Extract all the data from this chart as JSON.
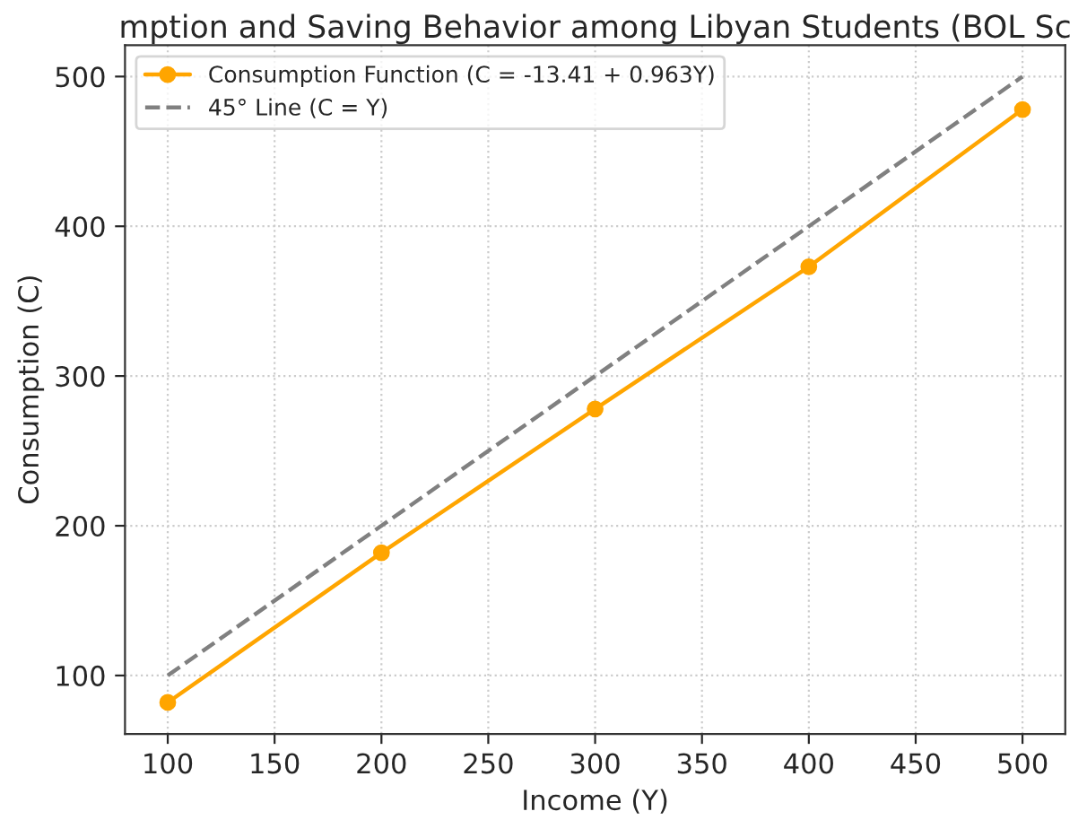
{
  "chart_data": {
    "type": "line",
    "title": "mption and Saving Behavior among Libyan Students (BOL Sc",
    "xlabel": "Income (Y)",
    "ylabel": "Consumption (C)",
    "x": [
      100,
      200,
      300,
      400,
      500
    ],
    "series": [
      {
        "name": "Consumption Function (C = -13.41 + 0.963Y)",
        "color": "#ffa500",
        "values": [
          82,
          182,
          278,
          373,
          478
        ],
        "marker": "circle",
        "line_style": "solid"
      },
      {
        "name": "45° Line (C = Y)",
        "color": "#808080",
        "values": [
          100,
          200,
          300,
          400,
          500
        ],
        "marker": "none",
        "line_style": "dashed"
      }
    ],
    "xlim": [
      80,
      520
    ],
    "xticks": [
      100,
      150,
      200,
      250,
      300,
      350,
      400,
      450,
      500
    ],
    "ylim": [
      61,
      521
    ],
    "yticks": [
      100,
      200,
      300,
      400,
      500
    ],
    "grid": true,
    "legend": "top left"
  }
}
